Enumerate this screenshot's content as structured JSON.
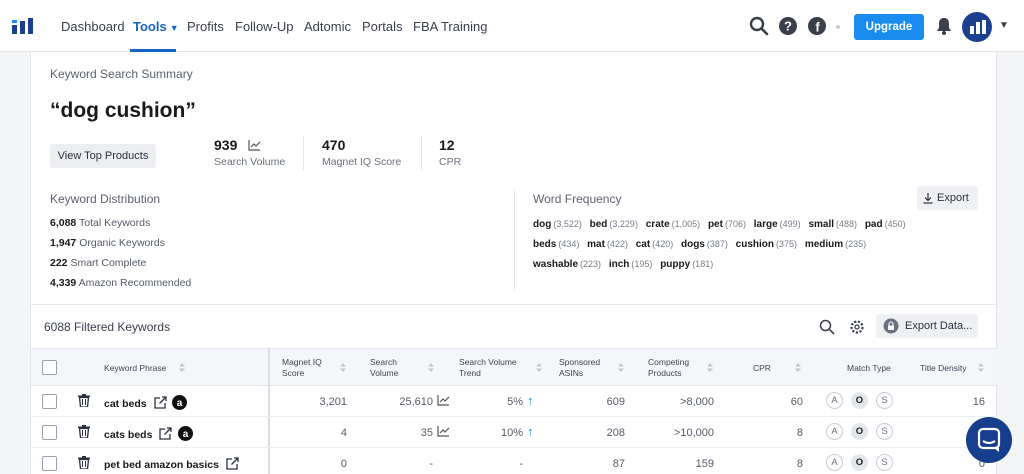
{
  "nav": {
    "items": [
      {
        "label": "Dashboard",
        "active": false
      },
      {
        "label": "Tools",
        "active": true
      },
      {
        "label": "Profits",
        "active": false
      },
      {
        "label": "Follow-Up",
        "active": false
      },
      {
        "label": "Adtomic",
        "active": false
      },
      {
        "label": "Portals",
        "active": false
      },
      {
        "label": "FBA Training",
        "active": false
      }
    ],
    "upgrade_label": "Upgrade",
    "icons": [
      "search-icon",
      "help-icon",
      "facebook-icon",
      "bell-icon",
      "avatar",
      "chevron-down-icon"
    ]
  },
  "summary": {
    "label": "Keyword Search Summary",
    "keyword": "“dog cushion”",
    "view_top_label": "View Top Products",
    "stats": [
      {
        "value": "939",
        "label": "Search Volume"
      },
      {
        "value": "470",
        "label": "Magnet IQ Score"
      },
      {
        "value": "12",
        "label": "CPR"
      }
    ]
  },
  "distribution": {
    "title": "Keyword Distribution",
    "rows": [
      {
        "value": "6,088",
        "label": "Total Keywords"
      },
      {
        "value": "1,947",
        "label": "Organic Keywords"
      },
      {
        "value": "222",
        "label": "Smart Complete"
      },
      {
        "value": "4,339",
        "label": "Amazon Recommended"
      }
    ]
  },
  "word_frequency": {
    "title": "Word Frequency",
    "export_label": "Export",
    "lines": [
      [
        {
          "w": "dog",
          "c": "(3,522)"
        },
        {
          "w": "bed",
          "c": "(3,229)"
        },
        {
          "w": "crate",
          "c": "(1,005)"
        },
        {
          "w": "pet",
          "c": "(706)"
        },
        {
          "w": "large",
          "c": "(499)"
        },
        {
          "w": "small",
          "c": "(488)"
        },
        {
          "w": "pad",
          "c": "(450)"
        }
      ],
      [
        {
          "w": "beds",
          "c": "(434)"
        },
        {
          "w": "mat",
          "c": "(422)"
        },
        {
          "w": "cat",
          "c": "(420)"
        },
        {
          "w": "dogs",
          "c": "(387)"
        },
        {
          "w": "cushion",
          "c": "(375)"
        },
        {
          "w": "medium",
          "c": "(235)"
        }
      ],
      [
        {
          "w": "washable",
          "c": "(223)"
        },
        {
          "w": "inch",
          "c": "(195)"
        },
        {
          "w": "puppy",
          "c": "(181)"
        }
      ]
    ]
  },
  "table": {
    "filtered_label": "6088 Filtered Keywords",
    "export_data_label": "Export Data...",
    "headers": {
      "keyword": "Keyword Phrase",
      "miq_1": "Magnet IQ",
      "miq_2": "Score",
      "sv_1": "Search",
      "sv_2": "Volume",
      "svt_1": "Search Volume",
      "svt_2": "Trend",
      "sa_1": "Sponsored",
      "sa_2": "ASINs",
      "cp_1": "Competing",
      "cp_2": "Products",
      "cpr": "CPR",
      "match": "Match Type",
      "density": "Title Density"
    },
    "match_letters": [
      "A",
      "O",
      "S"
    ],
    "rows": [
      {
        "keyword": "cat beds",
        "miq": "3,201",
        "sv": "25,610",
        "trend": "5%",
        "trend_dir": "up",
        "sponsored": "609",
        "competing": ">8,000",
        "cpr": "60",
        "density": "16",
        "amazon": true,
        "sv_chart": true
      },
      {
        "keyword": "cats beds",
        "miq": "4",
        "sv": "35",
        "trend": "10%",
        "trend_dir": "up",
        "sponsored": "208",
        "competing": ">10,000",
        "cpr": "8",
        "density": "",
        "amazon": true,
        "sv_chart": true
      },
      {
        "keyword": "pet bed amazon basics",
        "miq": "0",
        "sv": "-",
        "trend": "-",
        "trend_dir": "",
        "sponsored": "87",
        "competing": "159",
        "cpr": "8",
        "density": "0",
        "amazon": false,
        "sv_chart": false
      }
    ]
  },
  "colors": {
    "primary": "#1565c0",
    "upgrade": "#1a8cf0",
    "trend_up": "#1a8cf0",
    "avatar": "#1d3f8f"
  }
}
